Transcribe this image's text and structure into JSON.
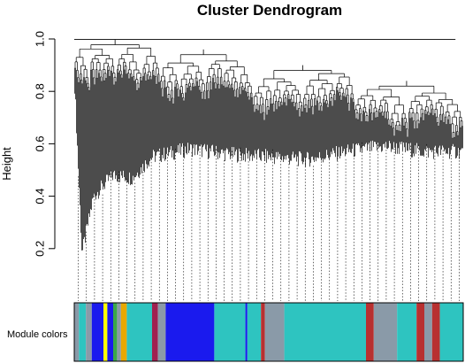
{
  "chart_data": {
    "type": "dendrogram",
    "title": "Cluster Dendrogram",
    "ylabel": "Height",
    "xlabel": "",
    "ylim": [
      0.0,
      1.0
    ],
    "y_ticks": [
      0.2,
      0.4,
      0.6,
      0.8,
      1.0
    ],
    "y_tick_labels": [
      "0.2",
      "0.4",
      "0.6",
      "0.8",
      "1.0"
    ],
    "grid": false,
    "leaf_count": 440,
    "leaf_height_profile": {
      "x_fraction": [
        0.0,
        0.02,
        0.05,
        0.1,
        0.15,
        0.2,
        0.3,
        0.4,
        0.5,
        0.6,
        0.7,
        0.8,
        0.9,
        1.0
      ],
      "height": [
        0.86,
        0.18,
        0.4,
        0.48,
        0.47,
        0.55,
        0.58,
        0.56,
        0.55,
        0.54,
        0.57,
        0.59,
        0.57,
        0.57
      ]
    },
    "top_merges": [
      {
        "x_start": 0.0,
        "x_end": 0.22,
        "height": 0.998
      },
      {
        "x_start": 0.22,
        "x_end": 0.46,
        "height": 0.96
      },
      {
        "x_start": 0.46,
        "x_end": 0.72,
        "height": 0.9
      },
      {
        "x_start": 0.72,
        "x_end": 1.0,
        "height": 0.84
      }
    ],
    "color_strip": {
      "label": "Module colors",
      "segments": [
        {
          "from": 0.0,
          "to": 0.012,
          "color": "#8a9aa8"
        },
        {
          "from": 0.012,
          "to": 0.03,
          "color": "#2ec4c0"
        },
        {
          "from": 0.03,
          "to": 0.045,
          "color": "#8a9aa8"
        },
        {
          "from": 0.045,
          "to": 0.075,
          "color": "#1a1aee"
        },
        {
          "from": 0.075,
          "to": 0.085,
          "color": "#ffff00"
        },
        {
          "from": 0.085,
          "to": 0.1,
          "color": "#1a1aee"
        },
        {
          "from": 0.1,
          "to": 0.11,
          "color": "#3aa84a"
        },
        {
          "from": 0.11,
          "to": 0.12,
          "color": "#8a9aa8"
        },
        {
          "from": 0.12,
          "to": 0.135,
          "color": "#e8a800"
        },
        {
          "from": 0.135,
          "to": 0.2,
          "color": "#2ec4c0"
        },
        {
          "from": 0.2,
          "to": 0.215,
          "color": "#a02050"
        },
        {
          "from": 0.215,
          "to": 0.235,
          "color": "#8a9aa8"
        },
        {
          "from": 0.235,
          "to": 0.36,
          "color": "#1a1aee"
        },
        {
          "from": 0.36,
          "to": 0.44,
          "color": "#2ec4c0"
        },
        {
          "from": 0.44,
          "to": 0.445,
          "color": "#1a1aee"
        },
        {
          "from": 0.445,
          "to": 0.48,
          "color": "#2ec4c0"
        },
        {
          "from": 0.48,
          "to": 0.49,
          "color": "#b83030"
        },
        {
          "from": 0.49,
          "to": 0.54,
          "color": "#8a9aa8"
        },
        {
          "from": 0.54,
          "to": 0.75,
          "color": "#2ec4c0"
        },
        {
          "from": 0.75,
          "to": 0.77,
          "color": "#b83030"
        },
        {
          "from": 0.77,
          "to": 0.83,
          "color": "#8a9aa8"
        },
        {
          "from": 0.83,
          "to": 0.88,
          "color": "#2ec4c0"
        },
        {
          "from": 0.88,
          "to": 0.9,
          "color": "#b83030"
        },
        {
          "from": 0.9,
          "to": 0.92,
          "color": "#8a9aa8"
        },
        {
          "from": 0.92,
          "to": 0.94,
          "color": "#b83030"
        },
        {
          "from": 0.94,
          "to": 1.0,
          "color": "#2ec4c0"
        }
      ]
    }
  }
}
